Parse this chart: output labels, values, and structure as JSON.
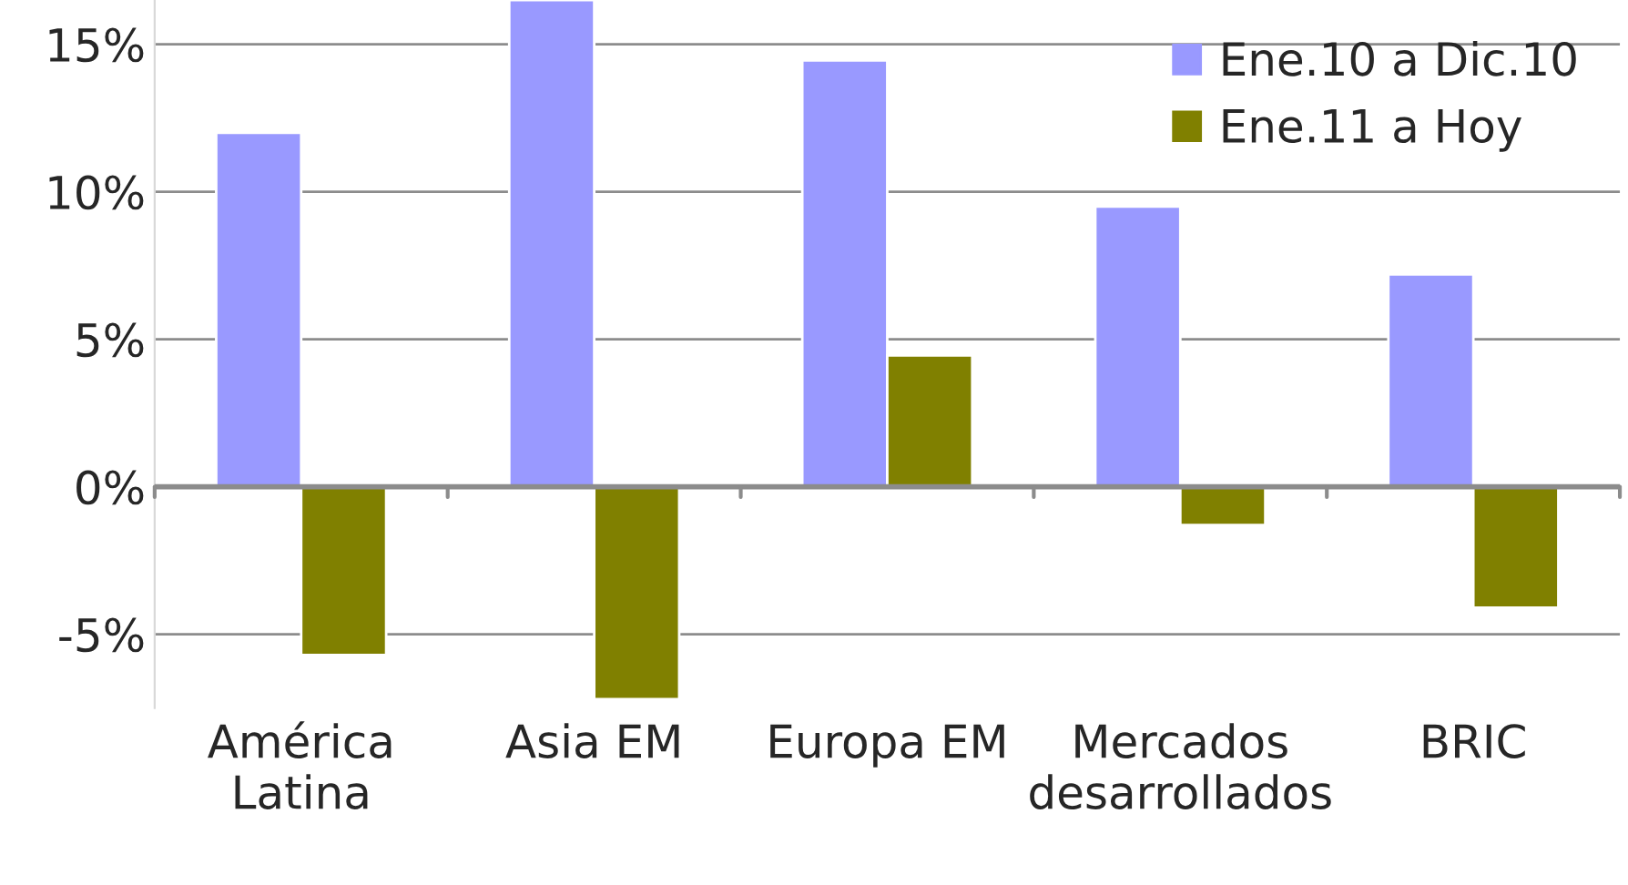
{
  "chart_data": {
    "type": "bar",
    "categories": [
      "América\nLatina",
      "Asia EM",
      "Europa EM",
      "Mercados\ndesarrollados",
      "BRIC"
    ],
    "series": [
      {
        "name": "Ene.10 a Dic.10",
        "color": "#9999ff",
        "values": [
          12.0,
          16.5,
          14.45,
          9.5,
          7.2
        ]
      },
      {
        "name": "Ene.11 a Hoy",
        "color": "#808000",
        "values": [
          -5.7,
          -7.2,
          4.45,
          -1.3,
          -4.1
        ]
      }
    ],
    "ylim": [
      -7.5,
      16.5
    ],
    "yticks": [
      {
        "value": -5,
        "label": "-5%"
      },
      {
        "value": 0,
        "label": "0%"
      },
      {
        "value": 5,
        "label": "5%"
      },
      {
        "value": 10,
        "label": "10%"
      },
      {
        "value": 15,
        "label": "15%"
      }
    ],
    "grid": "y",
    "legend": "top right"
  }
}
